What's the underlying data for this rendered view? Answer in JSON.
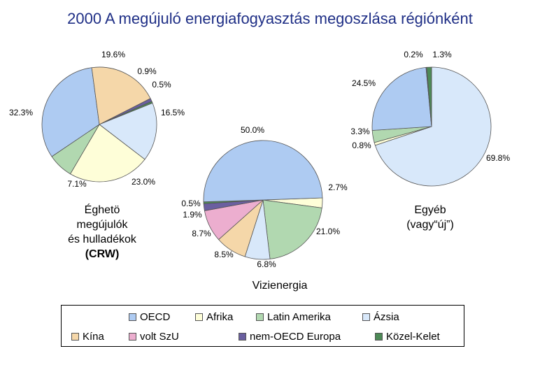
{
  "title": "2000 A megújuló energiafogyasztás megoszlása régiónként",
  "legend": [
    {
      "key": "oecd",
      "label": "OECD",
      "color": "#aecbf2"
    },
    {
      "key": "afrika",
      "label": "Afrika",
      "color": "#fefed8"
    },
    {
      "key": "latam",
      "label": "Latin Amerika",
      "color": "#b1d8b0"
    },
    {
      "key": "azsia",
      "label": "Ázsia",
      "color": "#d8e8fa"
    },
    {
      "key": "kina",
      "label": "Kína",
      "color": "#f5d7a9"
    },
    {
      "key": "voltszu",
      "label": "volt SzU",
      "color": "#ecaecf"
    },
    {
      "key": "nemoecd",
      "label": "nem-OECD Europa",
      "color": "#6a5fa0"
    },
    {
      "key": "kozel",
      "label": "Közel-Kelet",
      "color": "#4d8a56"
    }
  ],
  "chart_data": [
    {
      "type": "pie",
      "name_lines": [
        "Éghetö",
        "megújulók",
        "és hulladékok",
        "(CRW)"
      ],
      "slices": [
        {
          "key": "nemoecd",
          "value": 0.9,
          "label": "0.9%"
        },
        {
          "key": "kozel",
          "value": 0.5,
          "label": "0.5%"
        },
        {
          "key": "azsia",
          "value": 16.5,
          "label": "16.5%"
        },
        {
          "key": "afrika",
          "value": 23.0,
          "label": "23.0%"
        },
        {
          "key": "latam",
          "value": 7.1,
          "label": "7.1%"
        },
        {
          "key": "oecd",
          "value": 32.3,
          "label": "32.3%"
        },
        {
          "key": "kina",
          "value": 19.6,
          "label": "19.6%"
        }
      ]
    },
    {
      "type": "pie",
      "name_lines": [
        "Vizienergia"
      ],
      "slices": [
        {
          "key": "afrika",
          "value": 2.7,
          "label": "2.7%"
        },
        {
          "key": "latam",
          "value": 21.0,
          "label": "21.0%"
        },
        {
          "key": "azsia",
          "value": 6.8,
          "label": "6.8%"
        },
        {
          "key": "kina",
          "value": 8.5,
          "label": "8.5%"
        },
        {
          "key": "voltszu",
          "value": 8.7,
          "label": "8.7%"
        },
        {
          "key": "nemoecd",
          "value": 1.9,
          "label": "1.9%"
        },
        {
          "key": "kozel",
          "value": 0.5,
          "label": "0.5%"
        },
        {
          "key": "oecd",
          "value": 50.0,
          "label": "50.0%"
        }
      ]
    },
    {
      "type": "pie",
      "name_lines": [
        "Egyéb",
        "(vagy“új”)"
      ],
      "slices": [
        {
          "key": "azsia",
          "value": 69.8,
          "label": "69.8%"
        },
        {
          "key": "afrika",
          "value": 0.8,
          "label": "0.8%"
        },
        {
          "key": "latam",
          "value": 3.3,
          "label": "3.3%"
        },
        {
          "key": "oecd",
          "value": 24.5,
          "label": "24.5%"
        },
        {
          "key": "nemoecd",
          "value": 0.2,
          "label": "0.2%"
        },
        {
          "key": "kozel",
          "value": 1.3,
          "label": "1.3%"
        }
      ]
    }
  ]
}
